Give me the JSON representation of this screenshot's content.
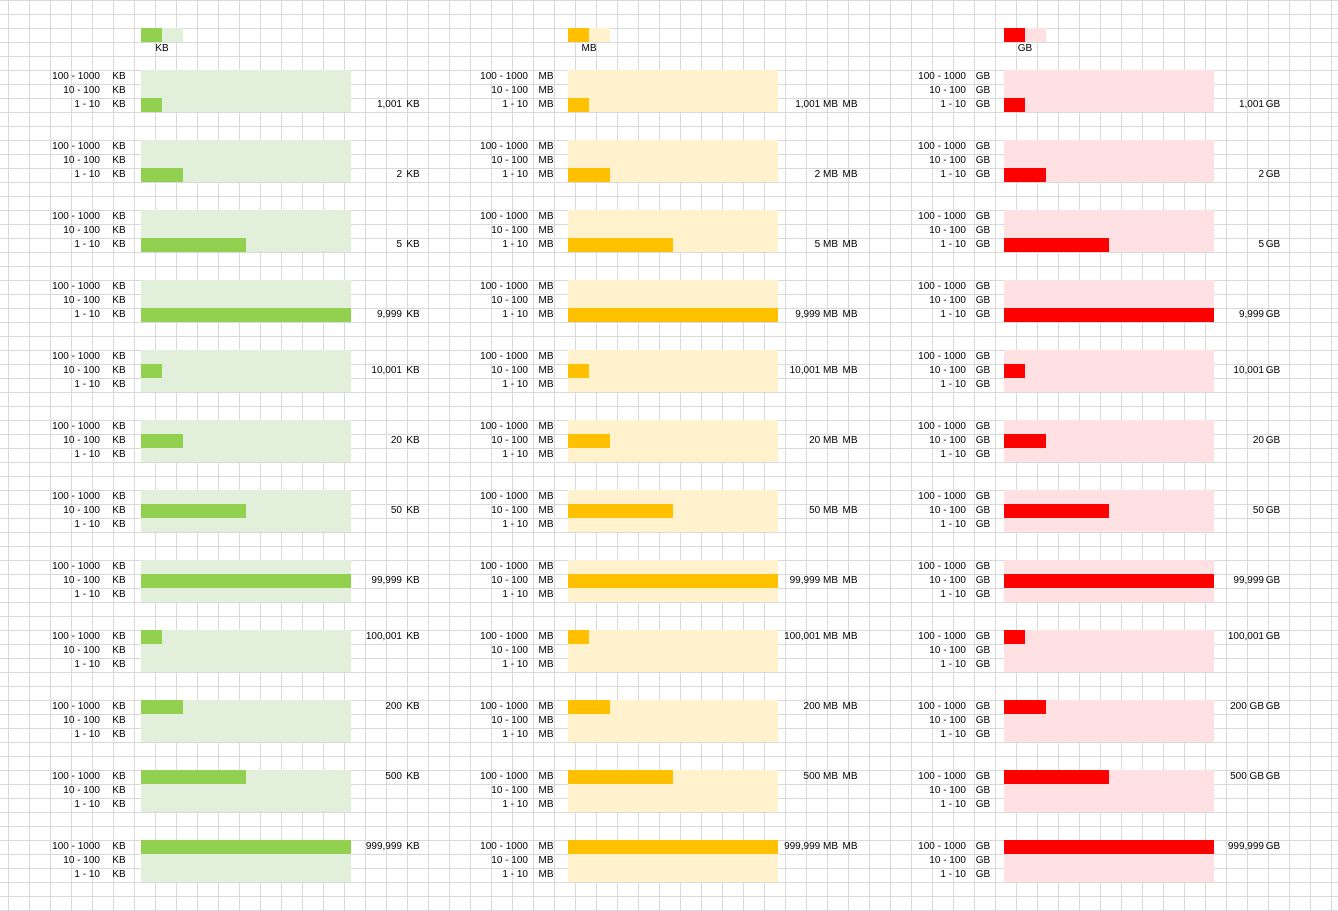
{
  "legend": [
    {
      "unit": "KB",
      "color": "#92d050",
      "light": "#e2efda"
    },
    {
      "unit": "MB",
      "color": "#ffc000",
      "light": "#fff2cc"
    },
    {
      "unit": "GB",
      "color": "#ff0000",
      "light": "#ffe1e3"
    }
  ],
  "range_labels": [
    "100 - 1000",
    "10 - 100",
    "1 - 10"
  ],
  "columns": [
    {
      "unit": "KB",
      "color": "#92d050",
      "light": "#e2efda",
      "blocks": [
        {
          "value": "1,001",
          "unit": "KB",
          "row": 2,
          "fill": 0.1
        },
        {
          "value": "2",
          "unit": "KB",
          "row": 2,
          "fill": 0.2
        },
        {
          "value": "5",
          "unit": "KB",
          "row": 2,
          "fill": 0.5
        },
        {
          "value": "9,999",
          "unit": "KB",
          "row": 2,
          "fill": 1.0
        },
        {
          "value": "10,001",
          "unit": "KB",
          "row": 1,
          "fill": 0.1
        },
        {
          "value": "20",
          "unit": "KB",
          "row": 1,
          "fill": 0.2
        },
        {
          "value": "50",
          "unit": "KB",
          "row": 1,
          "fill": 0.5
        },
        {
          "value": "99,999",
          "unit": "KB",
          "row": 1,
          "fill": 1.0
        },
        {
          "value": "100,001",
          "unit": "KB",
          "row": 0,
          "fill": 0.1
        },
        {
          "value": "200",
          "unit": "KB",
          "row": 0,
          "fill": 0.2
        },
        {
          "value": "500",
          "unit": "KB",
          "row": 0,
          "fill": 0.5
        },
        {
          "value": "999,999",
          "unit": "KB",
          "row": 0,
          "fill": 1.0
        }
      ]
    },
    {
      "unit": "MB",
      "color": "#ffc000",
      "light": "#fff2cc",
      "blocks": [
        {
          "value": "1,001 MB",
          "unit": "MB",
          "row": 2,
          "fill": 0.1
        },
        {
          "value": "2 MB",
          "unit": "MB",
          "row": 2,
          "fill": 0.2
        },
        {
          "value": "5 MB",
          "unit": "MB",
          "row": 2,
          "fill": 0.5
        },
        {
          "value": "9,999 MB",
          "unit": "MB",
          "row": 2,
          "fill": 1.0
        },
        {
          "value": "10,001 MB",
          "unit": "MB",
          "row": 1,
          "fill": 0.1
        },
        {
          "value": "20 MB",
          "unit": "MB",
          "row": 1,
          "fill": 0.2
        },
        {
          "value": "50 MB",
          "unit": "MB",
          "row": 1,
          "fill": 0.5
        },
        {
          "value": "99,999 MB",
          "unit": "MB",
          "row": 1,
          "fill": 1.0
        },
        {
          "value": "100,001 MB",
          "unit": "MB",
          "row": 0,
          "fill": 0.1
        },
        {
          "value": "200 MB",
          "unit": "MB",
          "row": 0,
          "fill": 0.2
        },
        {
          "value": "500 MB",
          "unit": "MB",
          "row": 0,
          "fill": 0.5
        },
        {
          "value": "999,999 MB",
          "unit": "MB",
          "row": 0,
          "fill": 1.0
        }
      ]
    },
    {
      "unit": "GB",
      "color": "#ff0000",
      "light": "#ffe1e3",
      "blocks": [
        {
          "value": "1,001",
          "unit": "GB",
          "row": 2,
          "fill": 0.1
        },
        {
          "value": "2",
          "unit": "GB",
          "row": 2,
          "fill": 0.2
        },
        {
          "value": "5",
          "unit": "GB",
          "row": 2,
          "fill": 0.5
        },
        {
          "value": "9,999",
          "unit": "GB",
          "row": 2,
          "fill": 1.0
        },
        {
          "value": "10,001",
          "unit": "GB",
          "row": 1,
          "fill": 0.1
        },
        {
          "value": "20",
          "unit": "GB",
          "row": 1,
          "fill": 0.2
        },
        {
          "value": "50",
          "unit": "GB",
          "row": 1,
          "fill": 0.5
        },
        {
          "value": "99,999",
          "unit": "GB",
          "row": 1,
          "fill": 1.0
        },
        {
          "value": "100,001",
          "unit": "GB",
          "row": 0,
          "fill": 0.1
        },
        {
          "value": "200 GB",
          "unit": "GB",
          "row": 0,
          "fill": 0.2
        },
        {
          "value": "500 GB",
          "unit": "GB",
          "row": 0,
          "fill": 0.5
        },
        {
          "value": "999,999",
          "unit": "GB",
          "row": 0,
          "fill": 1.0
        }
      ]
    }
  ]
}
